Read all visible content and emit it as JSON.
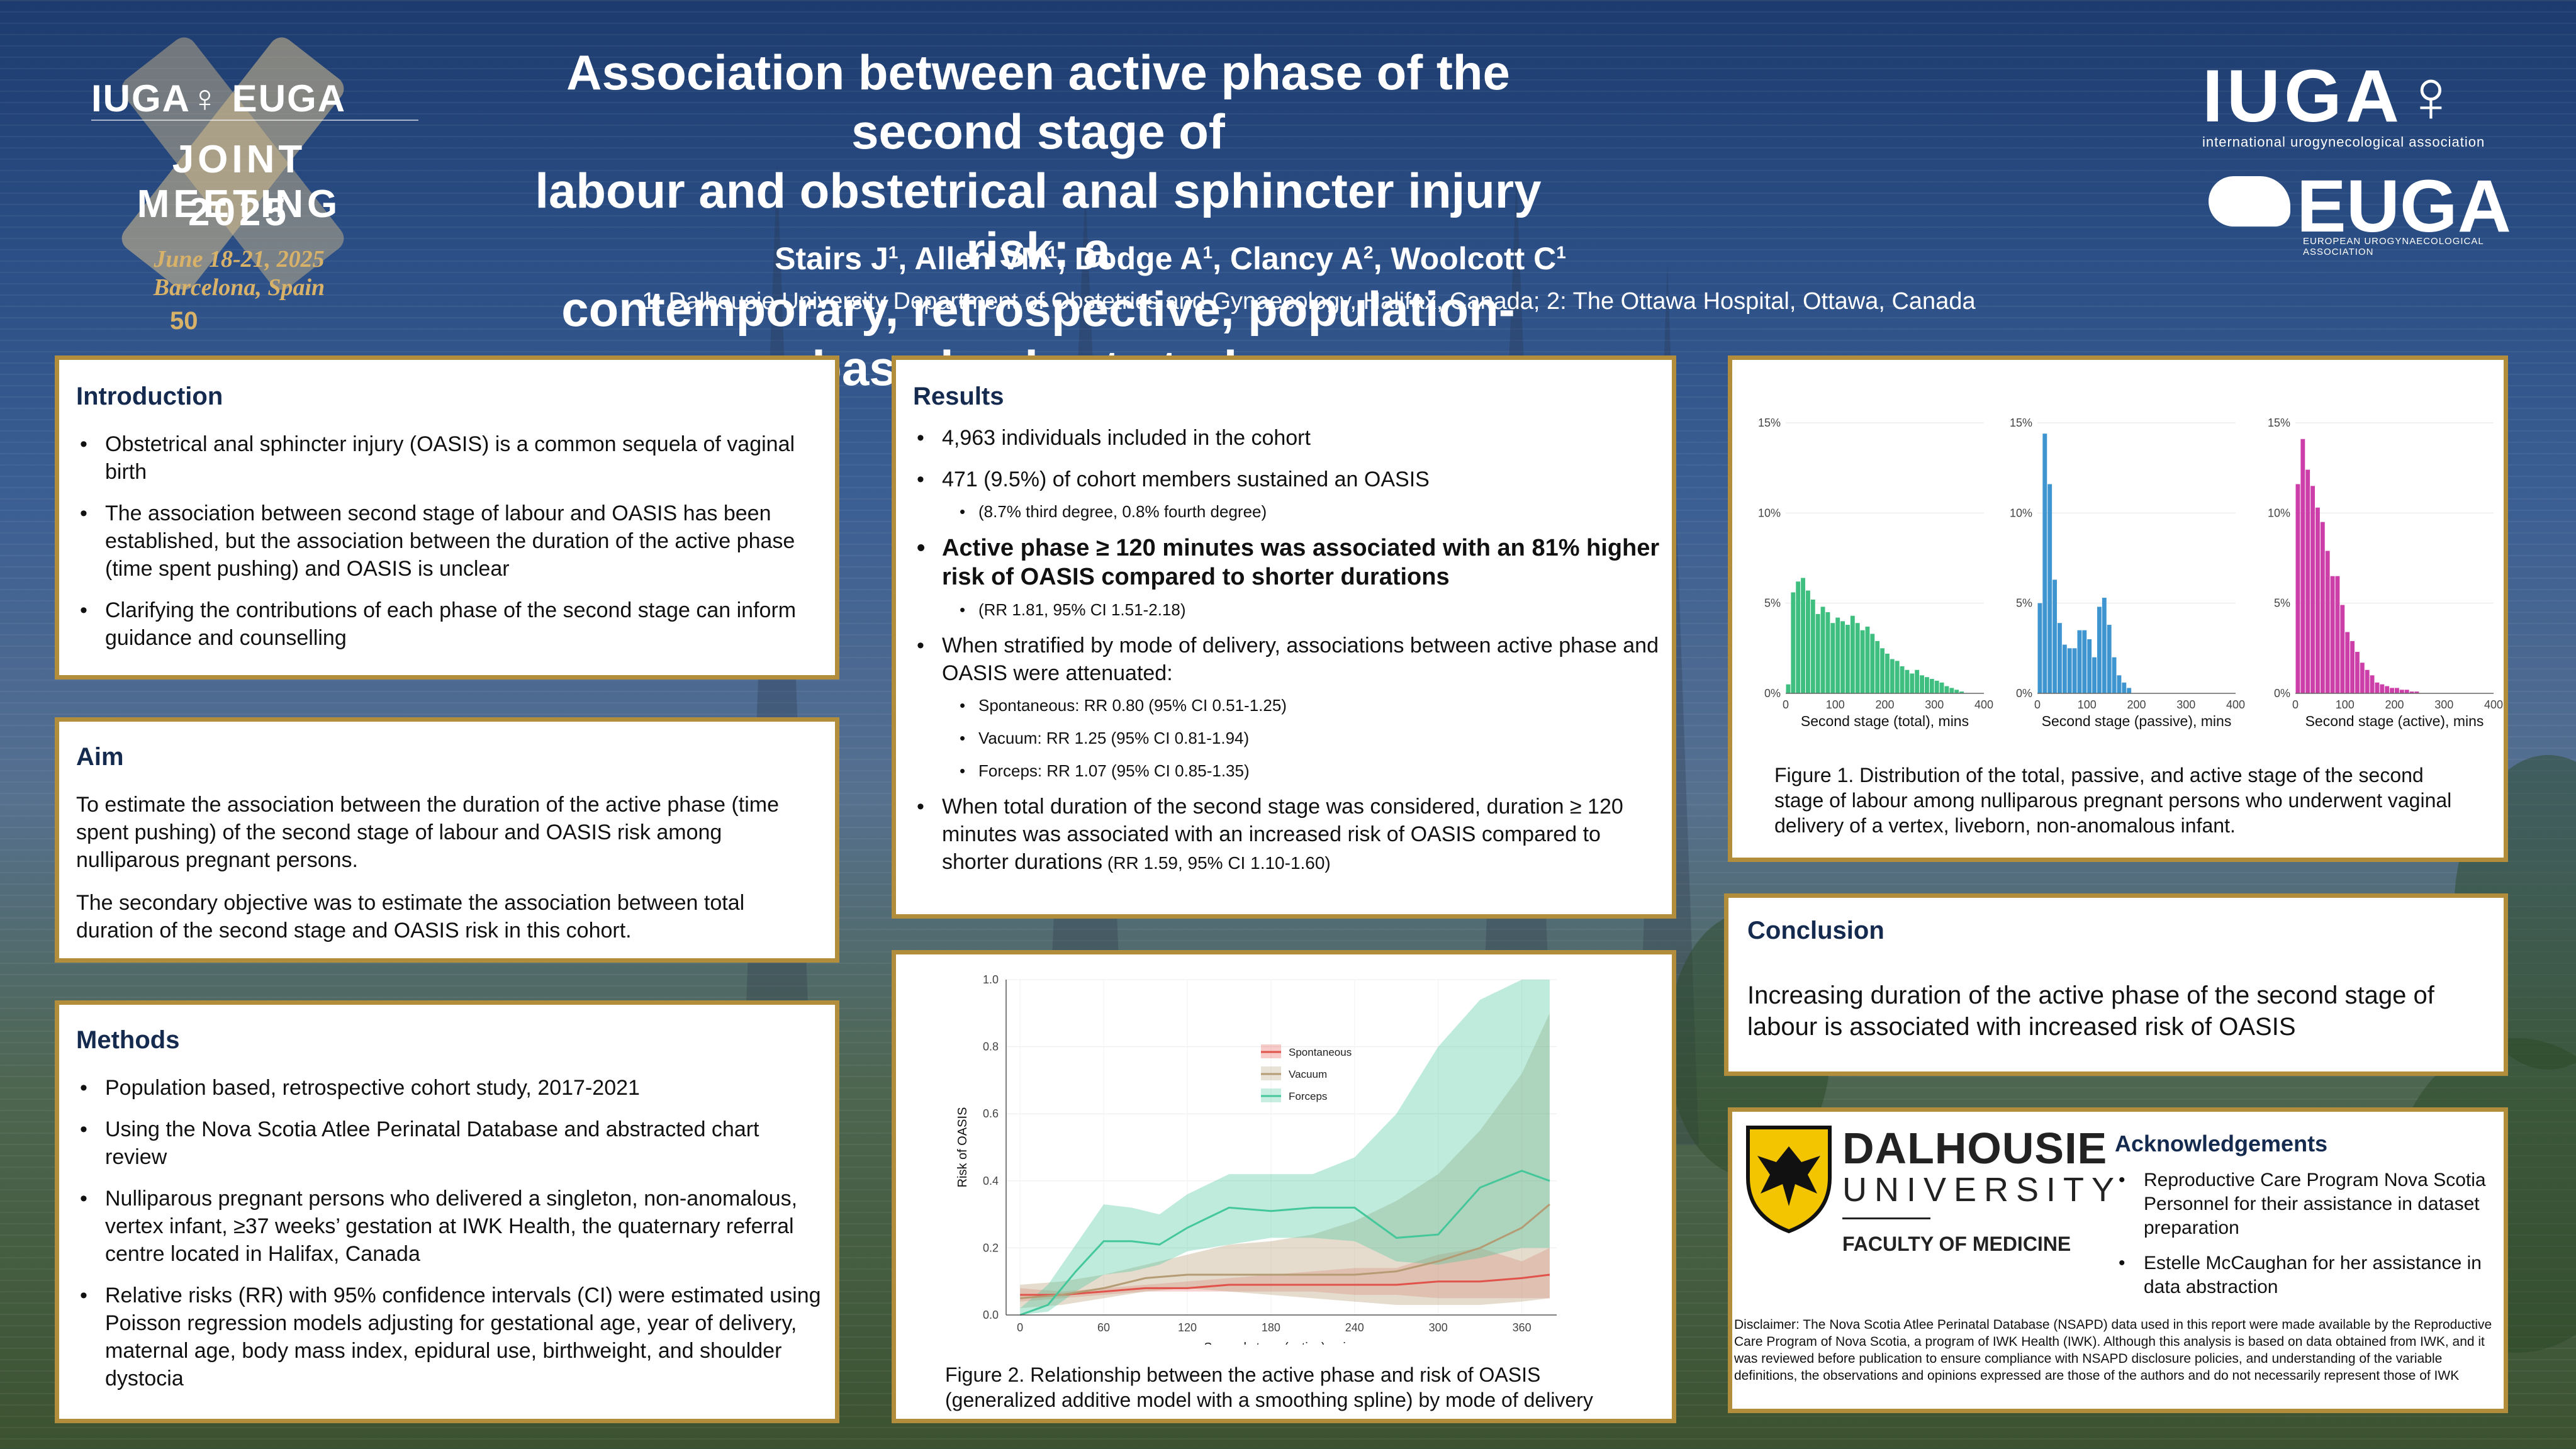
{
  "header": {
    "title_lines": [
      "Association between active phase of the second stage of",
      "labour and obstetrical anal sphincter injury risk: a",
      "contemporary, retrospective, population-based cohort study"
    ],
    "authors": [
      {
        "name": "Stairs J",
        "sup": "1"
      },
      {
        "name": "Allen VM",
        "sup": "1"
      },
      {
        "name": "Dodge A",
        "sup": "1"
      },
      {
        "name": "Clancy A",
        "sup": "2"
      },
      {
        "name": "Woolcott C",
        "sup": "1"
      }
    ],
    "affiliations": "1: Dalhousie University Department of Obstetrics and Gynaecology, Halifax, Canada; 2: The Ottawa Hospital, Ottawa, Canada"
  },
  "logo_left": {
    "brand": "IUGA♀ EUGA",
    "event_line1": "JOINT MEETING",
    "event_line2": "2025",
    "date": "June 18-21, 2025",
    "place": "Barcelona, Spain",
    "anniversary": "50"
  },
  "logo_right": {
    "iuga": "IUGA♀",
    "iuga_sub": "international urogynecological association",
    "euga": "EUGA",
    "euga_sub": "EUROPEAN UROGYNAECOLOGICAL ASSOCIATION"
  },
  "introduction": {
    "heading": "Introduction",
    "bullets": [
      "Obstetrical anal sphincter injury (OASIS) is a common sequela of vaginal birth",
      "The association between second stage of labour and OASIS has been established, but the association between the duration of the active phase (time spent pushing) and OASIS is unclear",
      "Clarifying the contributions of each phase of the second stage can inform guidance and counselling"
    ]
  },
  "aim": {
    "heading": "Aim",
    "paragraphs": [
      "To estimate the association between the duration of the active phase (time spent pushing) of the second stage of labour and OASIS risk among nulliparous pregnant persons.",
      "The secondary objective was to estimate the association between total duration of the second stage and OASIS risk in this cohort."
    ]
  },
  "methods": {
    "heading": "Methods",
    "bullets": [
      "Population based, retrospective cohort study, 2017-2021",
      "Using the Nova Scotia Atlee Perinatal Database and abstracted chart review",
      "Nulliparous pregnant persons who delivered a singleton, non-anomalous, vertex infant, ≥37 weeks’ gestation at IWK Health, the quaternary referral centre located in Halifax, Canada",
      "Relative risks (RR) with 95% confidence intervals (CI) were estimated using Poisson regression models adjusting for gestational age, year of delivery, maternal age, body mass index, epidural use, birthweight, and shoulder dystocia"
    ]
  },
  "results": {
    "heading": "Results",
    "b1": "4,963 individuals included in the cohort",
    "b2": "471 (9.5%) of cohort members sustained an OASIS",
    "b2_sub": "(8.7% third degree, 0.8% fourth degree)",
    "b3": "Active phase ≥ 120 minutes was associated with an 81% higher risk of OASIS compared to shorter durations",
    "b3_sub": "(RR 1.81, 95% CI 1.51-2.18)",
    "b4": "When stratified by mode of delivery, associations between active phase and OASIS were attenuated:",
    "b4_subs": [
      "Spontaneous: RR 0.80 (95% CI 0.51-1.25)",
      "Vacuum: RR 1.25 (95% CI 0.81-1.94)",
      "Forceps: RR 1.07 (95% CI 0.85-1.35)"
    ],
    "b5": "When total duration of the second stage was considered, duration ≥ 120 minutes was associated with an increased risk of OASIS compared to shorter durations",
    "b5_small": " (RR 1.59, 95% CI 1.10-1.60)"
  },
  "figure2": {
    "caption": "Figure 2. Relationship between the active phase and risk of OASIS (generalized additive model with a smoothing spline) by mode of delivery"
  },
  "figure1": {
    "caption": "Figure 1. Distribution of the total, passive, and active stage of the second stage of labour among nulliparous pregnant persons who underwent vaginal delivery of a vertex, liveborn, non-anomalous infant."
  },
  "conclusion": {
    "heading": "Conclusion",
    "text": "Increasing duration of the active phase of the second stage of labour is associated with increased risk of OASIS"
  },
  "dalhousie": {
    "name": "DALHOUSIE",
    "uni": "UNIVERSITY",
    "faculty": "FACULTY OF MEDICINE"
  },
  "acknowledgements": {
    "heading": "Acknowledgements",
    "bullets": [
      "Reproductive Care Program Nova Scotia Personnel for their assistance in dataset preparation",
      "Estelle McCaughan for her assistance in data abstraction"
    ]
  },
  "disclaimer": "Disclaimer: The Nova Scotia Atlee Perinatal Database (NSAPD) data used in this report were made available by the Reproductive Care Program of Nova Scotia, a program of IWK Health (IWK). Although this analysis is based on data obtained from IWK, and it was reviewed before publication to ensure compliance with NSAPD disclosure policies, and understanding of the variable definitions, the observations and opinions expressed are those of the authors and do not necessarily represent those of IWK",
  "colors": {
    "frame": "#b28d3c",
    "heading": "#152a4f",
    "total": "#3fbf7f",
    "passive": "#3e95d0",
    "active": "#cc3fa9",
    "spontaneous": "#e0524a",
    "vacuum": "#b49b73",
    "forceps": "#44c79a"
  },
  "chart_data": [
    {
      "type": "bar",
      "xlabel": "Second stage (total), mins",
      "xticks": [
        0,
        100,
        200,
        300,
        400
      ],
      "yticks": [
        "0%",
        "5%",
        "10%",
        "15%"
      ],
      "xlim": [
        0,
        400
      ],
      "ylim": [
        0,
        15
      ],
      "bin_width": 10,
      "values": [
        0.5,
        5.6,
        6.2,
        6.4,
        5.7,
        5.2,
        4.4,
        4.8,
        4.5,
        3.9,
        4.2,
        4.0,
        3.8,
        4.3,
        3.9,
        3.5,
        3.7,
        3.3,
        2.9,
        2.5,
        2.2,
        1.9,
        1.8,
        1.5,
        1.3,
        1.1,
        1.3,
        1.0,
        0.9,
        0.8,
        0.7,
        0.6,
        0.4,
        0.3,
        0.2,
        0.1
      ]
    },
    {
      "type": "bar",
      "xlabel": "Second stage (passive), mins",
      "xticks": [
        0,
        100,
        200,
        300,
        400
      ],
      "yticks": [
        "0%",
        "5%",
        "10%",
        "15%"
      ],
      "xlim": [
        0,
        400
      ],
      "ylim": [
        0,
        15
      ],
      "bin_width": 10,
      "values": [
        5.0,
        14.4,
        11.6,
        6.3,
        3.9,
        2.7,
        2.5,
        2.5,
        3.5,
        3.5,
        3.0,
        2.0,
        4.8,
        5.3,
        3.8,
        2.0,
        1.0,
        0.6,
        0.3
      ]
    },
    {
      "type": "bar",
      "xlabel": "Second stage (active), mins",
      "xticks": [
        0,
        100,
        200,
        300,
        400
      ],
      "yticks": [
        "0%",
        "5%",
        "10%",
        "15%"
      ],
      "xlim": [
        0,
        400
      ],
      "ylim": [
        0,
        15
      ],
      "bin_width": 10,
      "values": [
        11.6,
        14.1,
        12.4,
        11.5,
        10.3,
        9.5,
        7.9,
        6.5,
        6.5,
        4.9,
        3.4,
        2.9,
        2.3,
        1.7,
        1.3,
        1.0,
        0.6,
        0.5,
        0.4,
        0.3,
        0.3,
        0.2,
        0.2,
        0.1,
        0.1
      ]
    },
    {
      "type": "line",
      "xlabel": "Second stage (active), mins",
      "ylabel": "Risk of OASIS",
      "xticks": [
        0,
        60,
        120,
        180,
        240,
        300,
        360
      ],
      "yticks": [
        "0.0",
        "0.2",
        "0.4",
        "0.6",
        "0.8",
        "1.0"
      ],
      "xlim": [
        -10,
        385
      ],
      "ylim": [
        0,
        1.0
      ],
      "legend_position": "top-right",
      "series": [
        {
          "name": "Spontaneous",
          "x": [
            0,
            30,
            60,
            90,
            120,
            150,
            180,
            210,
            240,
            270,
            300,
            330,
            360,
            380
          ],
          "y": [
            0.06,
            0.06,
            0.07,
            0.08,
            0.08,
            0.09,
            0.09,
            0.09,
            0.09,
            0.09,
            0.1,
            0.1,
            0.11,
            0.12
          ],
          "lo": [
            0.04,
            0.05,
            0.06,
            0.07,
            0.07,
            0.07,
            0.07,
            0.07,
            0.06,
            0.06,
            0.05,
            0.05,
            0.05,
            0.05
          ],
          "hi": [
            0.08,
            0.07,
            0.08,
            0.09,
            0.1,
            0.11,
            0.12,
            0.13,
            0.14,
            0.14,
            0.18,
            0.2,
            0.16,
            0.2
          ]
        },
        {
          "name": "Vacuum",
          "x": [
            0,
            30,
            60,
            90,
            120,
            150,
            180,
            210,
            240,
            270,
            300,
            330,
            360,
            380
          ],
          "y": [
            0.05,
            0.06,
            0.08,
            0.11,
            0.12,
            0.12,
            0.12,
            0.12,
            0.12,
            0.13,
            0.16,
            0.2,
            0.26,
            0.33
          ],
          "lo": [
            0.02,
            0.03,
            0.05,
            0.07,
            0.08,
            0.07,
            0.06,
            0.05,
            0.04,
            0.03,
            0.03,
            0.03,
            0.04,
            0.05
          ],
          "hi": [
            0.09,
            0.1,
            0.12,
            0.15,
            0.18,
            0.21,
            0.22,
            0.24,
            0.28,
            0.34,
            0.42,
            0.55,
            0.72,
            0.9
          ]
        },
        {
          "name": "Forceps",
          "x": [
            0,
            20,
            40,
            60,
            80,
            100,
            120,
            150,
            180,
            210,
            240,
            270,
            300,
            330,
            360,
            380
          ],
          "y": [
            0.0,
            0.03,
            0.13,
            0.22,
            0.22,
            0.21,
            0.26,
            0.32,
            0.31,
            0.32,
            0.32,
            0.23,
            0.24,
            0.38,
            0.43,
            0.4
          ],
          "lo": [
            0.0,
            0.01,
            0.07,
            0.12,
            0.13,
            0.15,
            0.19,
            0.21,
            0.23,
            0.23,
            0.22,
            0.16,
            0.15,
            0.17,
            0.2,
            0.2
          ],
          "hi": [
            0.02,
            0.09,
            0.21,
            0.33,
            0.32,
            0.3,
            0.36,
            0.42,
            0.42,
            0.42,
            0.47,
            0.6,
            0.8,
            0.94,
            1.0,
            1.0
          ]
        }
      ]
    }
  ]
}
